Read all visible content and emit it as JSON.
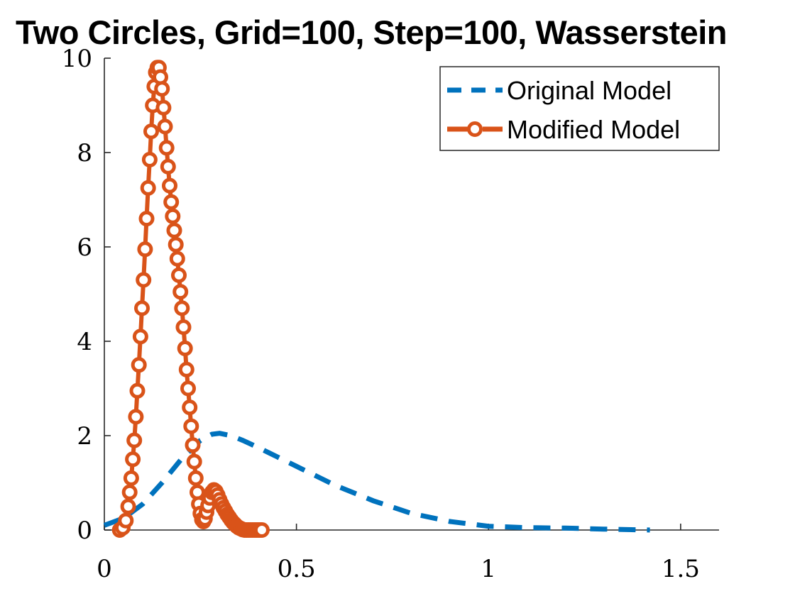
{
  "chart_data": {
    "type": "line",
    "title": "Two Circles, Grid=100, Step=100, Wasserstein",
    "xlabel": "",
    "ylabel": "",
    "xlim": [
      0,
      1.6
    ],
    "ylim": [
      0,
      10
    ],
    "xticks": [
      0,
      0.5,
      1,
      1.5
    ],
    "xtick_labels": [
      "0",
      "0.5",
      "1",
      "1.5"
    ],
    "yticks": [
      0,
      2,
      4,
      6,
      8,
      10
    ],
    "ytick_labels": [
      "0",
      "2",
      "4",
      "6",
      "8",
      "10"
    ],
    "grid": false,
    "legend_position": "top-right",
    "series": [
      {
        "name": "Original Model",
        "color": "#0072BD",
        "style": "dashed",
        "marker": "none",
        "x": [
          0,
          0.05,
          0.1,
          0.15,
          0.2,
          0.25,
          0.28,
          0.3,
          0.33,
          0.36,
          0.4,
          0.45,
          0.5,
          0.6,
          0.7,
          0.8,
          0.9,
          1.0,
          1.1,
          1.2,
          1.3,
          1.42
        ],
        "y": [
          0.1,
          0.25,
          0.55,
          1.0,
          1.5,
          1.9,
          2.03,
          2.05,
          2.0,
          1.9,
          1.75,
          1.55,
          1.35,
          0.95,
          0.62,
          0.35,
          0.18,
          0.08,
          0.05,
          0.04,
          0.02,
          0.0
        ]
      },
      {
        "name": "Modified Model",
        "color": "#D95319",
        "style": "solid",
        "marker": "circle",
        "x": [
          0.04,
          0.048,
          0.056,
          0.062,
          0.066,
          0.07,
          0.074,
          0.078,
          0.082,
          0.086,
          0.09,
          0.094,
          0.098,
          0.102,
          0.106,
          0.11,
          0.114,
          0.118,
          0.122,
          0.126,
          0.13,
          0.134,
          0.138,
          0.142,
          0.146,
          0.15,
          0.154,
          0.158,
          0.162,
          0.166,
          0.17,
          0.174,
          0.178,
          0.182,
          0.186,
          0.19,
          0.194,
          0.198,
          0.202,
          0.206,
          0.21,
          0.214,
          0.218,
          0.222,
          0.226,
          0.23,
          0.234,
          0.238,
          0.242,
          0.246,
          0.25,
          0.254,
          0.258,
          0.262,
          0.266,
          0.27,
          0.275,
          0.28,
          0.285,
          0.29,
          0.295,
          0.3,
          0.305,
          0.31,
          0.315,
          0.32,
          0.325,
          0.33,
          0.335,
          0.34,
          0.345,
          0.35,
          0.355,
          0.36,
          0.365,
          0.37,
          0.375,
          0.38,
          0.385,
          0.39,
          0.395,
          0.4,
          0.405,
          0.41
        ],
        "y": [
          0.0,
          0.05,
          0.2,
          0.5,
          0.8,
          1.1,
          1.5,
          1.9,
          2.4,
          2.95,
          3.5,
          4.1,
          4.7,
          5.3,
          5.95,
          6.6,
          7.25,
          7.85,
          8.45,
          9.0,
          9.4,
          9.7,
          9.8,
          9.8,
          9.6,
          9.35,
          8.95,
          8.55,
          8.1,
          7.7,
          7.3,
          6.95,
          6.65,
          6.35,
          6.05,
          5.75,
          5.4,
          5.05,
          4.7,
          4.3,
          3.85,
          3.4,
          3.0,
          2.6,
          2.2,
          1.8,
          1.45,
          1.1,
          0.8,
          0.55,
          0.35,
          0.22,
          0.18,
          0.24,
          0.38,
          0.52,
          0.68,
          0.8,
          0.85,
          0.82,
          0.74,
          0.64,
          0.55,
          0.47,
          0.4,
          0.33,
          0.27,
          0.21,
          0.16,
          0.12,
          0.08,
          0.05,
          0.03,
          0.01,
          0.0,
          0.0,
          0.0,
          0.0,
          0.0,
          0.0,
          0.0,
          0.0,
          0.0,
          0.0
        ]
      }
    ]
  }
}
